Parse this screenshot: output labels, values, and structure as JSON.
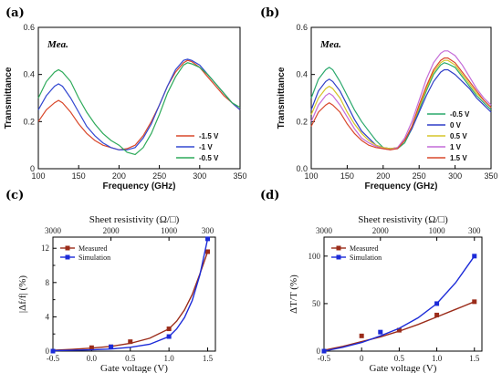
{
  "chart_data": [
    {
      "panel": "(a)",
      "type": "line",
      "xlabel": "Frequency (GHz)",
      "ylabel": "Transmittance",
      "xlim": [
        100,
        350
      ],
      "ylim": [
        0,
        0.6
      ],
      "xticks": [
        "100",
        "150",
        "200",
        "250",
        "300",
        "350"
      ],
      "yticks": [
        "0",
        "0.2",
        "0.4",
        "0.6"
      ],
      "annotation": "Mea.",
      "legend_position": "bottom-right",
      "series": [
        {
          "name": "-1.5 V",
          "color": "#d9482b",
          "x": [
            100,
            110,
            120,
            125,
            130,
            140,
            150,
            160,
            170,
            180,
            190,
            200,
            210,
            220,
            230,
            240,
            250,
            260,
            270,
            280,
            285,
            290,
            300,
            310,
            320,
            330,
            340,
            350
          ],
          "y": [
            0.2,
            0.25,
            0.28,
            0.29,
            0.28,
            0.24,
            0.19,
            0.15,
            0.12,
            0.1,
            0.09,
            0.08,
            0.085,
            0.1,
            0.14,
            0.2,
            0.27,
            0.35,
            0.41,
            0.45,
            0.46,
            0.455,
            0.43,
            0.39,
            0.35,
            0.31,
            0.28,
            0.25
          ]
        },
        {
          "name": "-1 V",
          "color": "#3348d1",
          "x": [
            100,
            110,
            120,
            125,
            130,
            140,
            150,
            160,
            170,
            180,
            190,
            200,
            210,
            220,
            230,
            240,
            250,
            260,
            270,
            280,
            285,
            290,
            300,
            310,
            320,
            330,
            340,
            350
          ],
          "y": [
            0.25,
            0.31,
            0.35,
            0.36,
            0.35,
            0.3,
            0.24,
            0.18,
            0.14,
            0.11,
            0.09,
            0.08,
            0.08,
            0.09,
            0.13,
            0.19,
            0.27,
            0.35,
            0.42,
            0.46,
            0.465,
            0.46,
            0.44,
            0.4,
            0.36,
            0.32,
            0.28,
            0.25
          ]
        },
        {
          "name": "-0.5 V",
          "color": "#2eaa5a",
          "x": [
            100,
            110,
            120,
            125,
            130,
            140,
            150,
            160,
            170,
            180,
            190,
            200,
            210,
            220,
            230,
            240,
            250,
            260,
            270,
            280,
            285,
            290,
            300,
            310,
            320,
            330,
            340,
            350
          ],
          "y": [
            0.3,
            0.37,
            0.41,
            0.42,
            0.41,
            0.37,
            0.3,
            0.24,
            0.19,
            0.15,
            0.12,
            0.1,
            0.07,
            0.06,
            0.09,
            0.15,
            0.23,
            0.32,
            0.39,
            0.44,
            0.45,
            0.445,
            0.43,
            0.4,
            0.36,
            0.32,
            0.28,
            0.26
          ]
        }
      ]
    },
    {
      "panel": "(b)",
      "type": "line",
      "xlabel": "Frequency (GHz)",
      "ylabel": "Transmittance",
      "xlim": [
        100,
        350
      ],
      "ylim": [
        0,
        0.6
      ],
      "xticks": [
        "100",
        "150",
        "200",
        "250",
        "300",
        "350"
      ],
      "yticks": [
        "0.0",
        "0.2",
        "0.4",
        "0.6"
      ],
      "annotation": "Mea.",
      "legend_position": "bottom-right",
      "series": [
        {
          "name": "-0.5 V",
          "color": "#2aa86c",
          "x": [
            100,
            110,
            120,
            125,
            130,
            140,
            150,
            160,
            170,
            180,
            190,
            200,
            210,
            220,
            230,
            240,
            250,
            260,
            270,
            280,
            285,
            290,
            300,
            310,
            320,
            330,
            340,
            350
          ],
          "y": [
            0.3,
            0.38,
            0.42,
            0.43,
            0.42,
            0.37,
            0.31,
            0.25,
            0.2,
            0.16,
            0.12,
            0.09,
            0.085,
            0.085,
            0.11,
            0.17,
            0.25,
            0.33,
            0.4,
            0.44,
            0.45,
            0.445,
            0.43,
            0.39,
            0.35,
            0.31,
            0.28,
            0.25
          ]
        },
        {
          "name": "0 V",
          "color": "#2e3dc7",
          "x": [
            100,
            110,
            120,
            125,
            130,
            140,
            150,
            160,
            170,
            180,
            190,
            200,
            210,
            220,
            230,
            240,
            250,
            260,
            270,
            280,
            285,
            290,
            300,
            310,
            320,
            330,
            340,
            350
          ],
          "y": [
            0.25,
            0.33,
            0.37,
            0.38,
            0.37,
            0.33,
            0.27,
            0.21,
            0.16,
            0.13,
            0.1,
            0.09,
            0.085,
            0.09,
            0.12,
            0.17,
            0.24,
            0.31,
            0.37,
            0.41,
            0.42,
            0.42,
            0.4,
            0.37,
            0.34,
            0.3,
            0.27,
            0.24
          ]
        },
        {
          "name": "0.5 V",
          "color": "#d6c62a",
          "x": [
            100,
            110,
            120,
            125,
            130,
            140,
            150,
            160,
            170,
            180,
            190,
            200,
            210,
            220,
            230,
            240,
            250,
            260,
            270,
            280,
            285,
            290,
            300,
            310,
            320,
            330,
            340,
            350
          ],
          "y": [
            0.23,
            0.3,
            0.34,
            0.35,
            0.34,
            0.3,
            0.24,
            0.19,
            0.15,
            0.12,
            0.1,
            0.09,
            0.085,
            0.09,
            0.12,
            0.18,
            0.26,
            0.34,
            0.41,
            0.45,
            0.46,
            0.46,
            0.44,
            0.4,
            0.36,
            0.32,
            0.29,
            0.26
          ]
        },
        {
          "name": "1 V",
          "color": "#c46bd8",
          "x": [
            100,
            110,
            120,
            125,
            130,
            140,
            150,
            160,
            170,
            180,
            190,
            200,
            210,
            220,
            230,
            240,
            250,
            260,
            270,
            280,
            285,
            290,
            300,
            310,
            320,
            330,
            340,
            350
          ],
          "y": [
            0.2,
            0.27,
            0.31,
            0.32,
            0.31,
            0.27,
            0.22,
            0.17,
            0.13,
            0.11,
            0.095,
            0.085,
            0.08,
            0.09,
            0.13,
            0.2,
            0.29,
            0.38,
            0.45,
            0.49,
            0.5,
            0.5,
            0.48,
            0.44,
            0.39,
            0.34,
            0.3,
            0.27
          ]
        },
        {
          "name": "1.5 V",
          "color": "#d9482b",
          "x": [
            100,
            110,
            120,
            125,
            130,
            140,
            150,
            160,
            170,
            180,
            190,
            200,
            210,
            220,
            230,
            240,
            250,
            260,
            270,
            280,
            285,
            290,
            300,
            310,
            320,
            330,
            340,
            350
          ],
          "y": [
            0.18,
            0.24,
            0.27,
            0.28,
            0.27,
            0.24,
            0.19,
            0.15,
            0.12,
            0.1,
            0.09,
            0.085,
            0.08,
            0.085,
            0.12,
            0.18,
            0.27,
            0.35,
            0.42,
            0.46,
            0.47,
            0.47,
            0.45,
            0.41,
            0.37,
            0.33,
            0.29,
            0.26
          ]
        }
      ]
    },
    {
      "panel": "(c)",
      "type": "scatter",
      "xlabel": "Gate voltage (V)",
      "ylabel": "|Δf/f| (%)",
      "top_xlabel": "Sheet resistivity (Ω/□)",
      "xlim": [
        -0.5,
        1.6
      ],
      "ylim": [
        0,
        13.3
      ],
      "xticks": [
        "-0.5",
        "0.0",
        "0.5",
        "1.0",
        "1.5"
      ],
      "yticks": [
        "0",
        "4",
        "8",
        "12"
      ],
      "minor_yticks": [
        "2",
        "6",
        "10"
      ],
      "top_ticks": [
        "3000",
        "2000",
        "1000",
        "300"
      ],
      "legend_position": "top-left",
      "series": [
        {
          "name": "Measured",
          "color": "#9b2c1a",
          "x": [
            -0.5,
            0.0,
            0.25,
            0.5,
            1.0,
            1.5
          ],
          "y": [
            0.0,
            0.4,
            0.5,
            1.1,
            2.6,
            11.6
          ],
          "fit_x": [
            -0.5,
            -0.25,
            0.0,
            0.25,
            0.5,
            0.75,
            1.0,
            1.1,
            1.2,
            1.3,
            1.4,
            1.5
          ],
          "fit_y": [
            0.1,
            0.2,
            0.35,
            0.55,
            0.9,
            1.5,
            2.6,
            3.5,
            4.8,
            6.6,
            9.0,
            11.6
          ]
        },
        {
          "name": "Simulation",
          "color": "#1c2bd8",
          "x": [
            -0.5,
            0.25,
            1.0,
            1.5
          ],
          "y": [
            0.0,
            0.5,
            1.7,
            13.1
          ],
          "fit_x": [
            -0.5,
            -0.25,
            0.0,
            0.25,
            0.5,
            0.75,
            1.0,
            1.1,
            1.2,
            1.3,
            1.4,
            1.5
          ],
          "fit_y": [
            0.05,
            0.1,
            0.15,
            0.25,
            0.45,
            0.8,
            1.7,
            2.6,
            3.9,
            5.9,
            8.9,
            13.1
          ]
        }
      ]
    },
    {
      "panel": "(d)",
      "type": "scatter",
      "xlabel": "Gate voltage (V)",
      "ylabel": "ΔT/T (%)",
      "top_xlabel": "Sheet resistivity (Ω/□)",
      "xlim": [
        -0.5,
        1.6
      ],
      "ylim": [
        0,
        120
      ],
      "xticks": [
        "-0.5",
        "0",
        "0.5",
        "1.0",
        "1.5"
      ],
      "yticks": [
        "0",
        "50",
        "100"
      ],
      "top_ticks": [
        "3000",
        "2000",
        "1000",
        "300"
      ],
      "legend_position": "top-left",
      "series": [
        {
          "name": "Measured",
          "color": "#9b2c1a",
          "x": [
            -0.5,
            0.0,
            0.5,
            1.0,
            1.5
          ],
          "y": [
            0,
            16,
            22,
            38,
            52
          ],
          "fit_x": [
            -0.5,
            -0.25,
            0.0,
            0.25,
            0.5,
            0.75,
            1.0,
            1.25,
            1.5
          ],
          "fit_y": [
            1,
            5,
            10,
            15,
            21,
            28,
            36,
            44,
            52
          ]
        },
        {
          "name": "Simulation",
          "color": "#1c2bd8",
          "x": [
            -0.5,
            0.25,
            1.0,
            1.5
          ],
          "y": [
            0,
            20,
            50,
            100
          ],
          "fit_x": [
            -0.5,
            -0.25,
            0.0,
            0.25,
            0.5,
            0.75,
            1.0,
            1.25,
            1.5
          ],
          "fit_y": [
            0,
            4,
            9,
            16,
            24,
            35,
            50,
            72,
            100
          ]
        }
      ]
    }
  ],
  "labels": {
    "a": "(a)",
    "b": "(b)",
    "c": "(c)",
    "d": "(d)"
  }
}
